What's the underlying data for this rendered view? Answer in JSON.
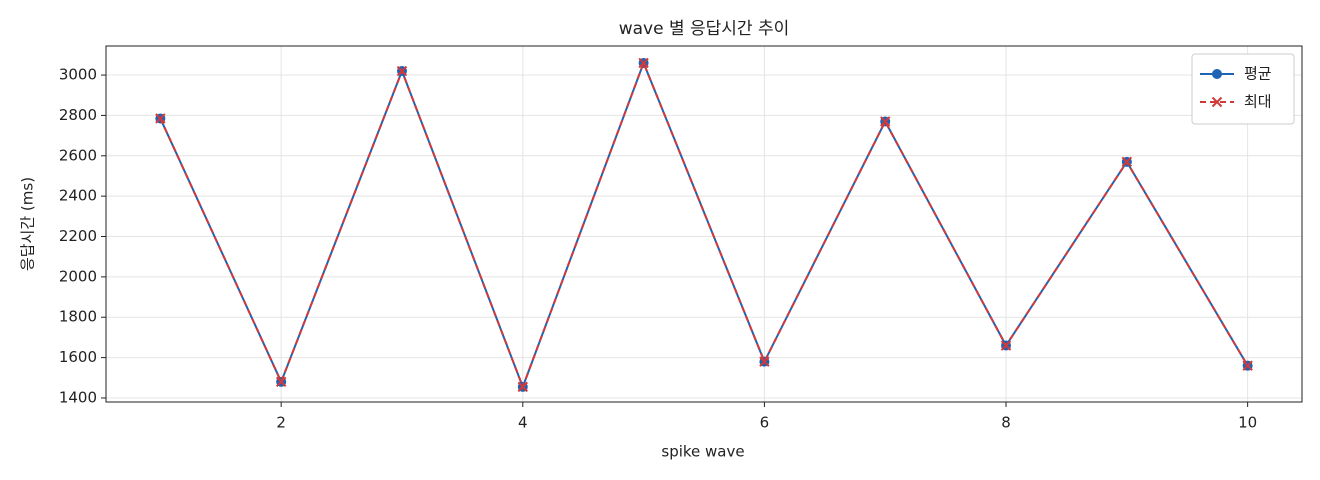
{
  "chart_data": {
    "type": "line",
    "title": "wave 별 응답시간 추이",
    "xlabel": "spike wave",
    "ylabel": "응답시간 (ms)",
    "x": [
      1,
      2,
      3,
      4,
      5,
      6,
      7,
      8,
      9,
      10
    ],
    "series": [
      {
        "name": "평균",
        "color": "#1f63b5",
        "marker": "circle",
        "dash": false,
        "values": [
          2785,
          1480,
          3020,
          1455,
          3060,
          1580,
          2770,
          1660,
          2570,
          1560
        ]
      },
      {
        "name": "최대",
        "color": "#d13a3a",
        "marker": "x",
        "dash": true,
        "values": [
          2785,
          1480,
          3020,
          1455,
          3060,
          1580,
          2770,
          1660,
          2570,
          1560
        ]
      }
    ],
    "xlim": [
      0.55,
      10.45
    ],
    "xticks": [
      2,
      4,
      6,
      8,
      10
    ],
    "ylim": [
      1380,
      3144
    ],
    "yticks": [
      1400,
      1600,
      1800,
      2000,
      2200,
      2400,
      2600,
      2800,
      3000
    ],
    "grid": true,
    "legend": "upper right"
  }
}
